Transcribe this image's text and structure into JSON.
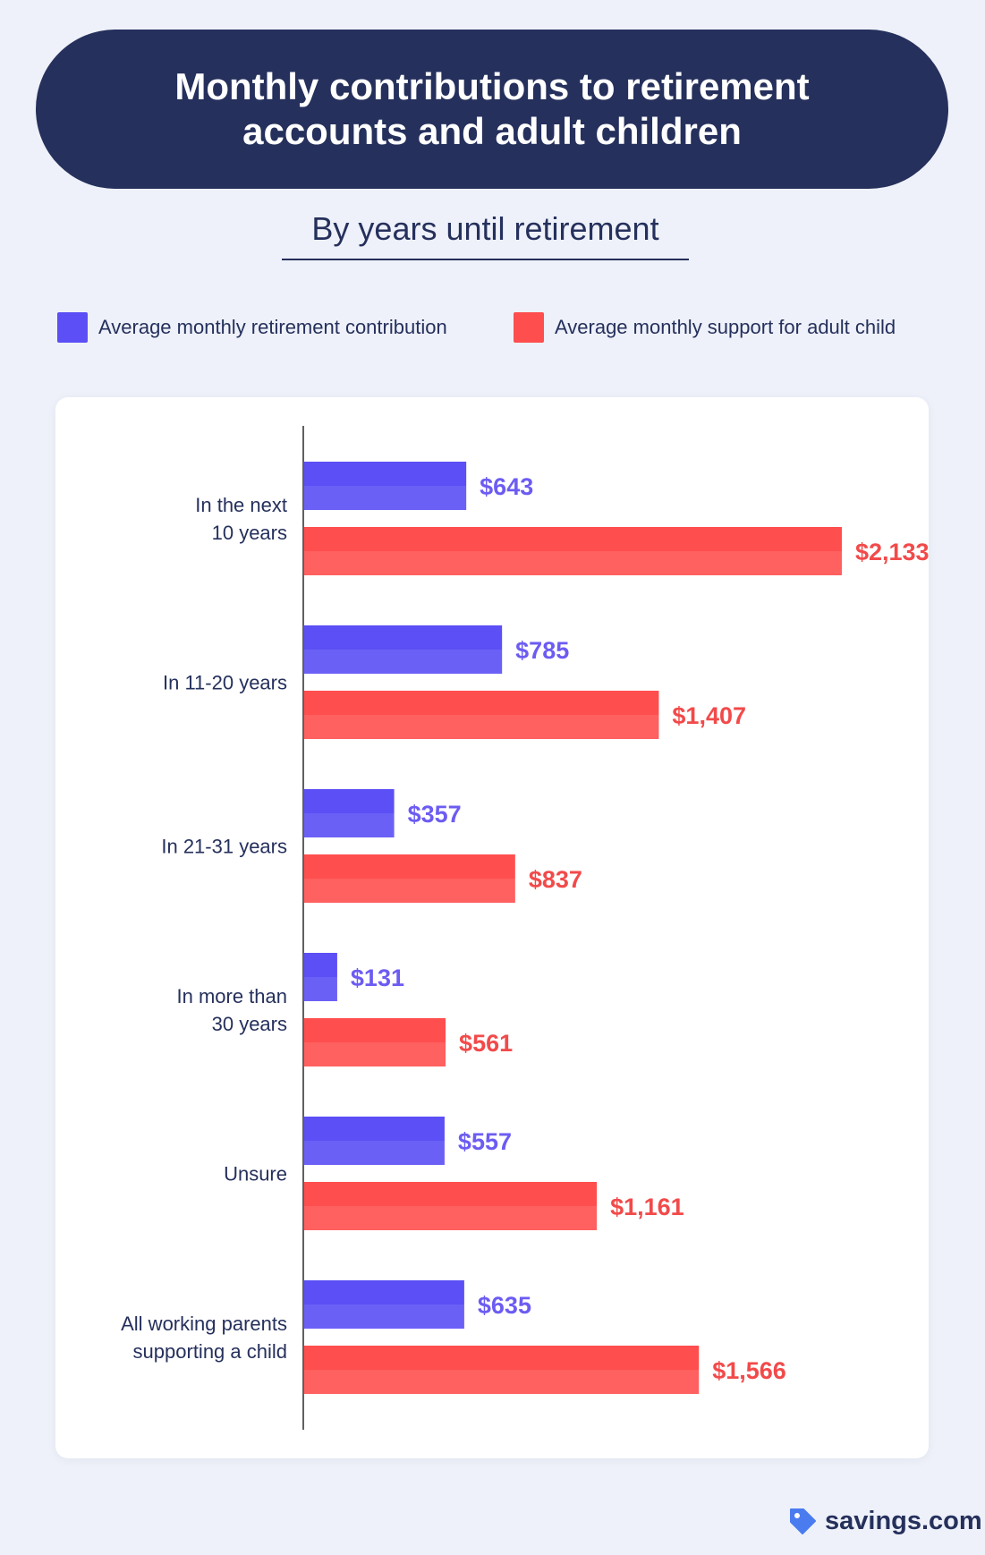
{
  "header": {
    "title_line1": "Monthly contributions to retirement",
    "title_line2": "accounts and adult children",
    "subtitle": "By years until retirement"
  },
  "colors": {
    "navy": "#25305c",
    "retirement": "#5b4ff5",
    "support": "#ff4e4e",
    "retirement_label": "#6c5cf2",
    "support_label": "#f24a4a"
  },
  "chart_data": {
    "type": "bar",
    "orientation": "horizontal",
    "title": "Monthly contributions to retirement accounts and adult children",
    "subtitle": "By years until retirement",
    "categories": [
      [
        "In the next",
        "10 years"
      ],
      [
        "In 11-20 years"
      ],
      [
        "In 21-31 years"
      ],
      [
        "In more than",
        "30 years"
      ],
      [
        "Unsure"
      ],
      [
        "All working parents",
        "supporting a child"
      ]
    ],
    "series": [
      {
        "name": "Average monthly retirement contribution",
        "values": [
          643,
          785,
          357,
          131,
          557,
          635
        ],
        "labels": [
          "$643",
          "$785",
          "$357",
          "$131",
          "$557",
          "$635"
        ]
      },
      {
        "name": "Average monthly support for adult child",
        "values": [
          2133,
          1407,
          837,
          561,
          1161,
          1566
        ],
        "labels": [
          "$2,133",
          "$1,407",
          "$837",
          "$561",
          "$1,161",
          "$1,566"
        ]
      }
    ],
    "xlim": [
      0,
      2300
    ],
    "grid": false,
    "legend_position": "top"
  },
  "footer": {
    "brand": "savings.com"
  }
}
